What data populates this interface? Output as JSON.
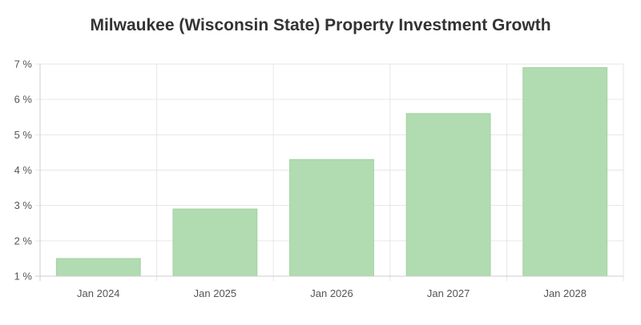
{
  "chart_data": {
    "type": "bar",
    "title": "Milwaukee (Wisconsin State) Property Investment Growth",
    "xlabel": "",
    "ylabel": "",
    "categories": [
      "Jan 2024",
      "Jan 2025",
      "Jan 2026",
      "Jan 2027",
      "Jan 2028"
    ],
    "values": [
      1.5,
      2.9,
      4.3,
      5.6,
      6.9
    ],
    "y_ticks": [
      "1 %",
      "2 %",
      "3 %",
      "4 %",
      "5 %",
      "6 %",
      "7 %"
    ],
    "ylim": [
      1,
      7
    ],
    "grid": true,
    "legend": "none",
    "colors": {
      "bar_fill": "#b1dbb0",
      "bar_stroke": "#a3d2a2",
      "grid": "#e6e6e6",
      "axis": "#cccccc"
    }
  }
}
